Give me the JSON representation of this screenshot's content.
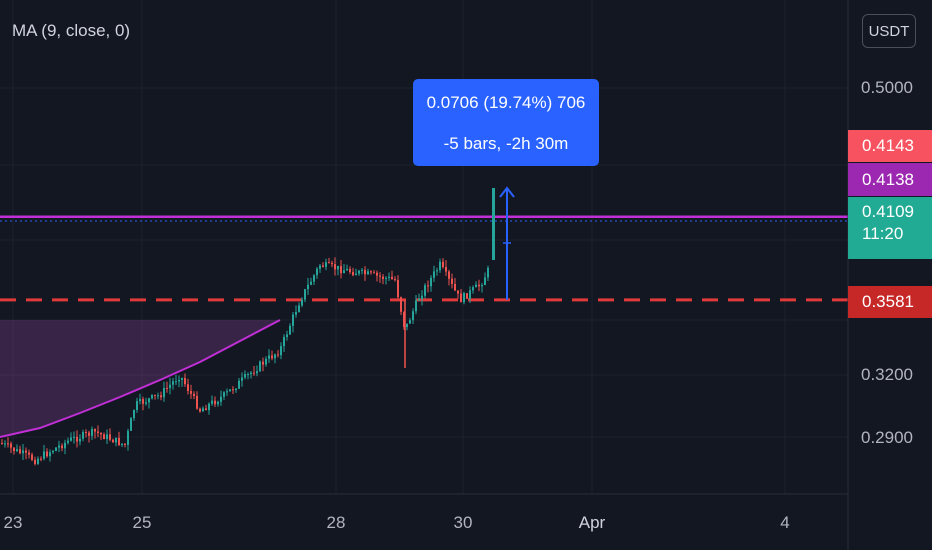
{
  "indicator": {
    "label": "MA (9, close, 0)"
  },
  "currency_button": "USDT",
  "measure": {
    "line1": "0.0706 (19.74%) 706",
    "line2": "-5 bars, -2h 30m"
  },
  "price_tags": [
    {
      "value": "0.4143",
      "color": "#f7525f"
    },
    {
      "value": "0.4138",
      "color": "#9c27b0"
    },
    {
      "value": "0.4109",
      "countdown": "11:20",
      "color": "#22ab94"
    },
    {
      "value": "0.3581",
      "color": "#c62828"
    }
  ],
  "chart_data": {
    "type": "candlestick",
    "symbol_quote": "USDT",
    "y_ticks": [
      0.5,
      0.32,
      0.29
    ],
    "y_tick_labels": [
      "0.5000",
      "0.3200",
      "0.2900"
    ],
    "x_tick_labels": [
      "23",
      "25",
      "28",
      "30",
      "Apr",
      "4"
    ],
    "moving_average": {
      "name": "MA (9, close, 0)",
      "color": "#c12fd6"
    },
    "horizontal_lines": [
      {
        "price": 0.4138,
        "color": "#c12fd6",
        "style": "solid"
      },
      {
        "price": 0.4109,
        "color": "#2962ff",
        "style": "dotted"
      },
      {
        "price": 0.3581,
        "color": "#e03a3a",
        "style": "dashed"
      }
    ],
    "measure": {
      "change": 0.0706,
      "percent": 19.74,
      "ticks": 706,
      "bars": -5,
      "time": "-2h 30m"
    },
    "colors": {
      "up": "#26a69a",
      "down": "#ef5350"
    }
  }
}
